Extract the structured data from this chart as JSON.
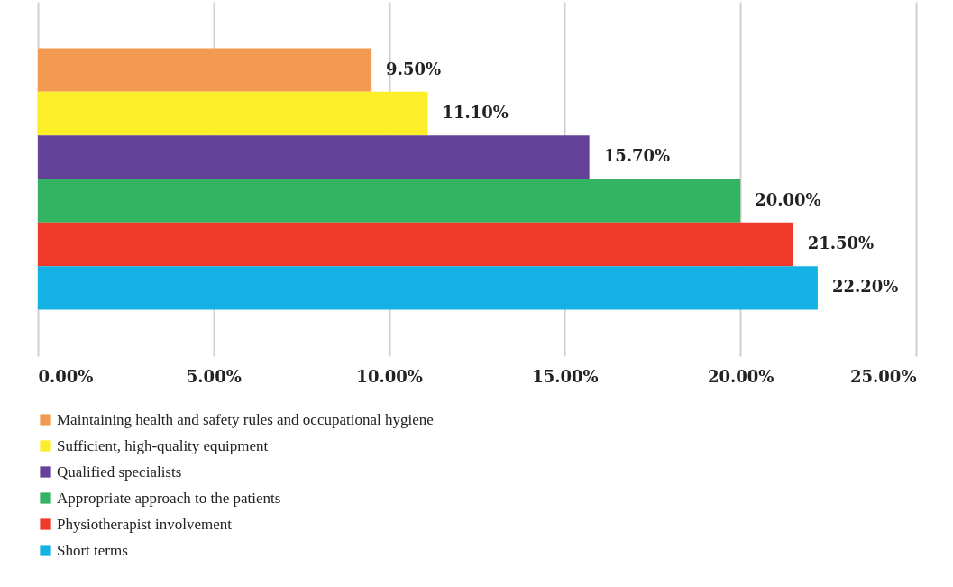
{
  "chart_data": {
    "type": "bar",
    "orientation": "horizontal",
    "categories": [
      null
    ],
    "series": [
      {
        "name": "Maintaining health and safety rules and occupational hygiene",
        "color": "#f39a52",
        "values": [
          9.5
        ],
        "value_labels": [
          "9.50%"
        ]
      },
      {
        "name": "Sufficient, high-quality equipment",
        "color": "#fdee2a",
        "values": [
          11.1
        ],
        "value_labels": [
          "11.10%"
        ]
      },
      {
        "name": "Qualified specialists",
        "color": "#654299",
        "values": [
          15.7
        ],
        "value_labels": [
          "15.70%"
        ]
      },
      {
        "name": "Appropriate approach to the patients",
        "color": "#33b463",
        "values": [
          20.0
        ],
        "value_labels": [
          "20.00%"
        ]
      },
      {
        "name": "Physiotherapist involvement",
        "color": "#ef3a2a",
        "values": [
          21.5
        ],
        "value_labels": [
          "21.50%"
        ]
      },
      {
        "name": "Short terms",
        "color": "#14b1e4",
        "values": [
          22.2
        ],
        "value_labels": [
          "22.20%"
        ]
      }
    ],
    "xlim": [
      0,
      25
    ],
    "xticks": [
      {
        "value": 0,
        "label": "0.00%"
      },
      {
        "value": 5,
        "label": "5.00%"
      },
      {
        "value": 10,
        "label": "10.00%"
      },
      {
        "value": 15,
        "label": "15.00%"
      },
      {
        "value": 20,
        "label": "20.00%"
      },
      {
        "value": 25,
        "label": "25.00%"
      }
    ],
    "grid": "x",
    "legend": "bottom",
    "tick_labels": "x"
  }
}
